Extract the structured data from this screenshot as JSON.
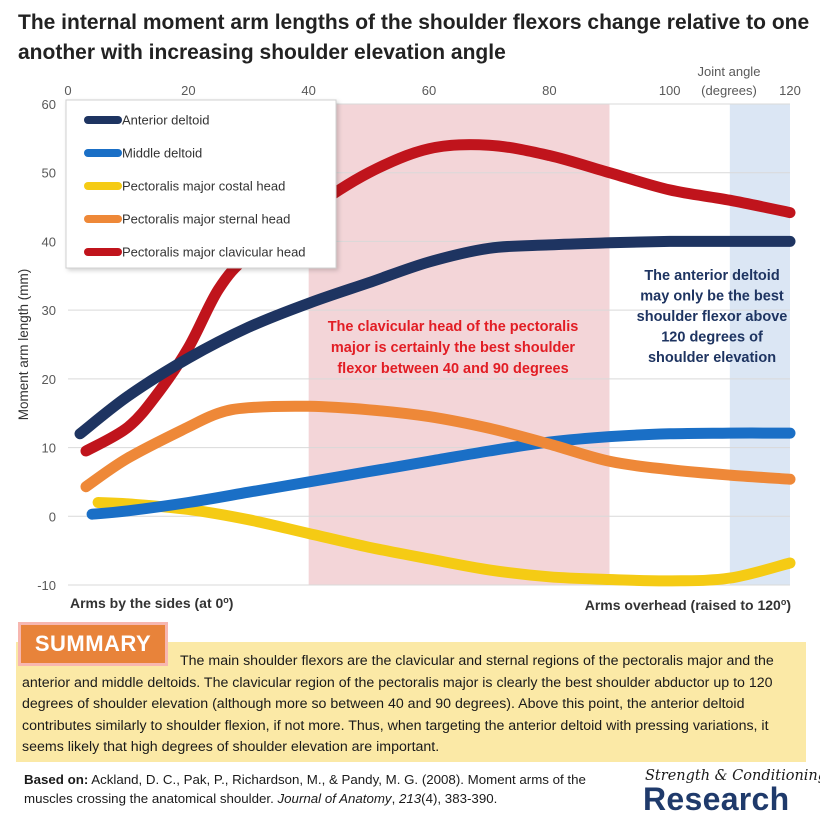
{
  "title": "The internal moment arm lengths of the shoulder flexors change relative to one another with increasing shoulder elevation angle",
  "colors": {
    "anterior_deltoid": "#1e3461",
    "middle_deltoid": "#1a6fc6",
    "pectoralis_costal": "#f5cb14",
    "pectoralis_sternal": "#ee8838",
    "pectoralis_clavicular": "#c0141c",
    "band_red": "#f3d5d8",
    "band_blue": "#dbe6f4",
    "summary_bg": "#fbe9a6",
    "summary_badge": "#e8833a",
    "brand_blue": "#1f3a6b"
  },
  "chart_data": {
    "type": "line",
    "xlabel": "Joint angle (degrees)",
    "xlabel_lines": [
      "Joint angle",
      "(degrees)"
    ],
    "ylabel": "Moment arm length (mm)",
    "xlim": [
      0,
      120
    ],
    "ylim": [
      -10,
      60
    ],
    "xticks": [
      0,
      20,
      40,
      60,
      80,
      100,
      120
    ],
    "xtick_labels": [
      "0",
      "20",
      "40",
      "60",
      "80",
      "100",
      "120"
    ],
    "yticks": [
      -10,
      0,
      10,
      20,
      30,
      40,
      50,
      60
    ],
    "ytick_labels": [
      "-10",
      "0",
      "10",
      "20",
      "30",
      "40",
      "50",
      "60"
    ],
    "grid": "horizontal",
    "shaded_regions": [
      {
        "x_from": 40,
        "x_to": 90,
        "color": "#f3d5d8"
      },
      {
        "x_from": 110,
        "x_to": 120,
        "color": "#dbe6f4"
      }
    ],
    "series": [
      {
        "name": "Anterior deltoid",
        "color": "#1e3461",
        "x": [
          2,
          10,
          20,
          30,
          40,
          50,
          60,
          70,
          80,
          90,
          100,
          110,
          120
        ],
        "y": [
          12,
          17.5,
          23,
          27.5,
          31,
          34,
          37,
          39,
          39.5,
          39.8,
          40,
          40,
          40
        ]
      },
      {
        "name": "Middle deltoid",
        "color": "#1a6fc6",
        "x": [
          4,
          10,
          20,
          30,
          40,
          50,
          60,
          70,
          80,
          90,
          100,
          110,
          120
        ],
        "y": [
          0.3,
          0.8,
          2,
          3.5,
          5,
          6.5,
          8,
          9.5,
          10.8,
          11.6,
          12,
          12.1,
          12.1
        ]
      },
      {
        "name": "Pectoralis major costal head",
        "color": "#f5cb14",
        "x": [
          5,
          10,
          20,
          30,
          40,
          50,
          60,
          70,
          80,
          90,
          100,
          110,
          120
        ],
        "y": [
          2,
          1.8,
          1,
          -0.5,
          -2.5,
          -4.5,
          -6.2,
          -7.8,
          -8.8,
          -9.2,
          -9.4,
          -9,
          -6.8
        ]
      },
      {
        "name": "Pectoralis major sternal head",
        "color": "#ee8838",
        "x": [
          3,
          10,
          20,
          25,
          30,
          40,
          50,
          60,
          70,
          80,
          90,
          100,
          110,
          120
        ],
        "y": [
          4.3,
          8.5,
          13,
          15,
          15.8,
          16,
          15.5,
          14.5,
          12.8,
          10.5,
          8,
          6.8,
          6,
          5.4
        ]
      },
      {
        "name": "Pectoralis major clavicular head",
        "color": "#c0141c",
        "x": [
          3,
          10,
          15,
          20,
          25,
          30,
          40,
          50,
          60,
          70,
          80,
          90,
          100,
          110,
          120
        ],
        "y": [
          9.5,
          13,
          18,
          24.5,
          33,
          38,
          44.5,
          50,
          53.5,
          54,
          52.5,
          50,
          47.5,
          46,
          44.2
        ]
      }
    ],
    "annotations": [
      {
        "text": "The clavicular head of the pectoralis major is certainly the best shoulder flexor between 40 and 90 degrees",
        "lines": [
          "The clavicular head of the pectoralis",
          "major is certainly the best shoulder",
          "flexor between 40 and 90 degrees"
        ],
        "color": "#e21d24"
      },
      {
        "text": "The anterior deltoid may only be the best shoulder flexor above 120 degrees of shoulder elevation",
        "lines": [
          "The anterior deltoid",
          "may only be the best",
          "shoulder flexor above",
          "120 degrees of",
          "shoulder elevation"
        ],
        "color": "#1e3461"
      }
    ],
    "bottom_left_label": "Arms by the sides (at 0",
    "bottom_right_label": "Arms  overhead (raised to 120",
    "degree_symbol": "o",
    "closing_paren": ")"
  },
  "summary": {
    "badge": "SUMMARY",
    "text": "The main shoulder flexors are the clavicular and sternal regions of the pectoralis major and the anterior and middle deltoids. The clavicular region of the pectoralis major is clearly the best shoulder abductor up to 120 degrees of shoulder elevation (although more so between 40 and 90 degrees). Above this point, the anterior deltoid contributes similarly to shoulder flexion, if not more. Thus, when targeting the anterior deltoid with pressing variations, it seems likely that high degrees of shoulder elevation are important."
  },
  "citation": {
    "prefix": "Based on:",
    "authors": " Ackland, D. C., Pak, P., Richardson, M., & Pandy, M. G. (2008). Moment arms of the muscles crossing the anatomical shoulder. ",
    "journal": "Journal of Anatomy",
    "after_journal": ", ",
    "volume": "213",
    "issue_pages": "(4), 383-390."
  },
  "brand": {
    "top": "Strength & Conditioning",
    "main": "Research"
  }
}
